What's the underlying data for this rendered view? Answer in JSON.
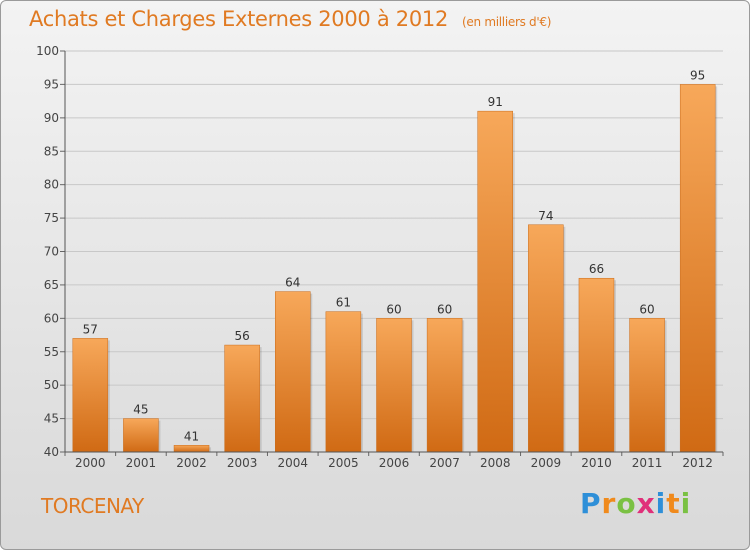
{
  "header": {
    "title": "Achats et Charges Externes 2000 à 2012",
    "unit": "(en milliers d'€)"
  },
  "footer": {
    "place": "TORCENAY",
    "logo": "Proxiti"
  },
  "colors": {
    "accent": "#e07a22",
    "bar_top": "#f7a85a",
    "bar_bottom": "#d06a14",
    "grid": "#c8c8c8"
  },
  "chart_data": {
    "type": "bar",
    "title": "Achats et Charges Externes 2000 à 2012",
    "categories": [
      "2000",
      "2001",
      "2002",
      "2003",
      "2004",
      "2005",
      "2006",
      "2007",
      "2008",
      "2009",
      "2010",
      "2011",
      "2012"
    ],
    "values": [
      57,
      45,
      41,
      56,
      64,
      61,
      60,
      60,
      91,
      74,
      66,
      60,
      95
    ],
    "xlabel": "",
    "ylabel": "",
    "ylim": [
      40,
      100
    ],
    "yticks": [
      40,
      45,
      50,
      55,
      60,
      65,
      70,
      75,
      80,
      85,
      90,
      95,
      100
    ],
    "grid": true,
    "legend": "none"
  }
}
